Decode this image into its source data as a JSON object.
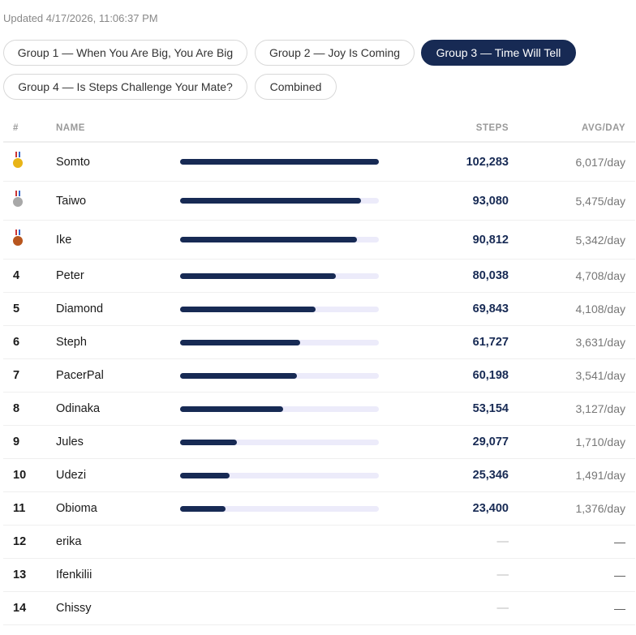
{
  "updated": "Updated 4/17/2026, 11:06:37 PM",
  "tabs": [
    {
      "label": "Group 1 — When You Are Big, You Are Big",
      "active": false
    },
    {
      "label": "Group 2 — Joy Is Coming",
      "active": false
    },
    {
      "label": "Group 3 — Time Will Tell",
      "active": true
    },
    {
      "label": "Group 4 — Is Steps Challenge Your Mate?",
      "active": false
    },
    {
      "label": "Combined",
      "active": false
    }
  ],
  "columns": {
    "rank": "#",
    "name": "NAME",
    "steps": "STEPS",
    "avg": "AVG/DAY"
  },
  "colors": {
    "accent": "#172a54",
    "bar_track": "#ecebfa",
    "gold": "#e8b417",
    "silver": "#a8a8a8",
    "bronze": "#b8561e"
  },
  "rows": [
    {
      "rank": "1",
      "medal": "gold-medal",
      "name": "Somto",
      "steps": "102,283",
      "value": 102283,
      "avg": "6,017/day"
    },
    {
      "rank": "2",
      "medal": "silver-medal",
      "name": "Taiwo",
      "steps": "93,080",
      "value": 93080,
      "avg": "5,475/day"
    },
    {
      "rank": "3",
      "medal": "bronze-medal",
      "name": "Ike",
      "steps": "90,812",
      "value": 90812,
      "avg": "5,342/day"
    },
    {
      "rank": "4",
      "name": "Peter",
      "steps": "80,038",
      "value": 80038,
      "avg": "4,708/day"
    },
    {
      "rank": "5",
      "name": "Diamond",
      "steps": "69,843",
      "value": 69843,
      "avg": "4,108/day"
    },
    {
      "rank": "6",
      "name": "Steph",
      "steps": "61,727",
      "value": 61727,
      "avg": "3,631/day"
    },
    {
      "rank": "7",
      "name": "PacerPal",
      "steps": "60,198",
      "value": 60198,
      "avg": "3,541/day"
    },
    {
      "rank": "8",
      "name": "Odinaka",
      "steps": "53,154",
      "value": 53154,
      "avg": "3,127/day"
    },
    {
      "rank": "9",
      "name": "Jules",
      "steps": "29,077",
      "value": 29077,
      "avg": "1,710/day"
    },
    {
      "rank": "10",
      "name": "Udezi",
      "steps": "25,346",
      "value": 25346,
      "avg": "1,491/day"
    },
    {
      "rank": "11",
      "name": "Obioma",
      "steps": "23,400",
      "value": 23400,
      "avg": "1,376/day"
    },
    {
      "rank": "12",
      "name": "erika",
      "steps": "—",
      "value": null,
      "avg": "—"
    },
    {
      "rank": "13",
      "name": "Ifenkilii",
      "steps": "—",
      "value": null,
      "avg": "—"
    },
    {
      "rank": "14",
      "name": "Chissy",
      "steps": "—",
      "value": null,
      "avg": "—"
    }
  ]
}
